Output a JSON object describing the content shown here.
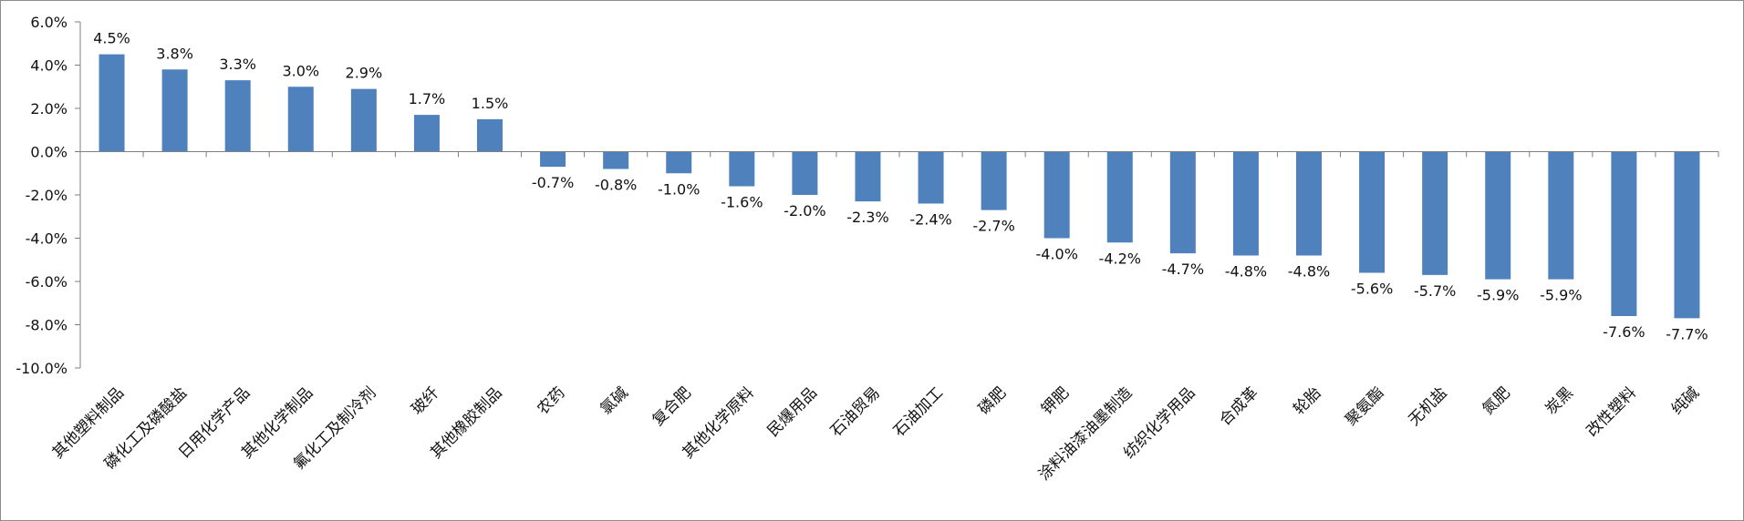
{
  "chart_data": {
    "type": "bar",
    "title": "",
    "xlabel": "",
    "ylabel": "",
    "ylim": [
      -10,
      6
    ],
    "ytick_step": 2,
    "y_tick_labels": [
      "6.0%",
      "4.0%",
      "2.0%",
      "0.0%",
      "-2.0%",
      "-4.0%",
      "-6.0%",
      "-8.0%",
      "-10.0%"
    ],
    "grid": false,
    "legend": "none",
    "bar_color": "#4F81BD",
    "categories": [
      "其他塑料制品",
      "磷化工及磷酸盐",
      "日用化学产品",
      "其他化学制品",
      "氟化工及制冷剂",
      "玻纤",
      "其他橡胶制品",
      "农药",
      "氯碱",
      "复合肥",
      "其他化学原料",
      "民爆用品",
      "石油贸易",
      "石油加工",
      "磷肥",
      "钾肥",
      "涂料油漆油墨制造",
      "纺织化学用品",
      "合成革",
      "轮胎",
      "聚氨酯",
      "无机盐",
      "氮肥",
      "炭黑",
      "改性塑料",
      "纯碱"
    ],
    "values": [
      4.5,
      3.8,
      3.3,
      3.0,
      2.9,
      1.7,
      1.5,
      -0.7,
      -0.8,
      -1.0,
      -1.6,
      -2.0,
      -2.3,
      -2.4,
      -2.7,
      -4.0,
      -4.2,
      -4.7,
      -4.8,
      -4.8,
      -5.6,
      -5.7,
      -5.9,
      -5.9,
      -7.6,
      -7.7
    ],
    "data_labels": [
      "4.5%",
      "3.8%",
      "3.3%",
      "3.0%",
      "2.9%",
      "1.7%",
      "1.5%",
      "-0.7%",
      "-0.8%",
      "-1.0%",
      "-1.6%",
      "-2.0%",
      "-2.3%",
      "-2.4%",
      "-2.7%",
      "-4.0%",
      "-4.2%",
      "-4.7%",
      "-4.8%",
      "-4.8%",
      "-5.6%",
      "-5.7%",
      "-5.9%",
      "-5.9%",
      "-7.6%",
      "-7.7%"
    ]
  }
}
